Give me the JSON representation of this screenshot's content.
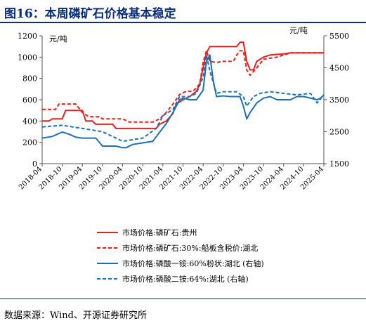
{
  "figure": {
    "title": "图16：本周磷矿石价格基本稳定",
    "source": "数据来源：Wind、开源证券研究所"
  },
  "colors": {
    "title": "#0b2f7a",
    "red": "#e8201a",
    "blue": "#1e6fb8"
  },
  "chart_data": {
    "type": "line",
    "title": "",
    "left_unit": "元/吨",
    "right_unit": "元/吨",
    "xlabel": "",
    "ylabel": "",
    "y_left": {
      "ticks": [
        0,
        200,
        400,
        600,
        800,
        1000,
        1200
      ],
      "ylim": [
        0,
        1200
      ]
    },
    "y_right": {
      "ticks": [
        1500,
        2500,
        3500,
        4500,
        5500
      ],
      "ylim": [
        1500,
        5500
      ]
    },
    "x_ticks": [
      "2018-04",
      "2018-10",
      "2019-04",
      "2019-10",
      "2020-04",
      "2020-10",
      "2021-04",
      "2021-10",
      "2022-04",
      "2022-10",
      "2023-04",
      "2023-10",
      "2024-04",
      "2024-10",
      "2025-04"
    ],
    "xlim": [
      "2018-04",
      "2025-04"
    ],
    "grid": false,
    "legend_position": "bottom",
    "series": [
      {
        "name": "市场价格:磷矿石:贵州",
        "axis": "left",
        "color": "#e8201a",
        "style": "solid",
        "points": [
          [
            "2018-04",
            400
          ],
          [
            "2018-06",
            400
          ],
          [
            "2018-07",
            420
          ],
          [
            "2018-10",
            420
          ],
          [
            "2018-11",
            500
          ],
          [
            "2019-04",
            500
          ],
          [
            "2019-05",
            400
          ],
          [
            "2019-07",
            400
          ],
          [
            "2019-08",
            370
          ],
          [
            "2020-01",
            370
          ],
          [
            "2020-02",
            330
          ],
          [
            "2021-02",
            330
          ],
          [
            "2021-03",
            370
          ],
          [
            "2021-05",
            400
          ],
          [
            "2021-07",
            470
          ],
          [
            "2021-08",
            560
          ],
          [
            "2021-10",
            600
          ],
          [
            "2021-12",
            630
          ],
          [
            "2022-02",
            680
          ],
          [
            "2022-03",
            750
          ],
          [
            "2022-04",
            900
          ],
          [
            "2022-05",
            1040
          ],
          [
            "2022-06",
            1100
          ],
          [
            "2023-02",
            1100
          ],
          [
            "2023-03",
            1140
          ],
          [
            "2023-04",
            1140
          ],
          [
            "2023-05",
            960
          ],
          [
            "2023-06",
            880
          ],
          [
            "2023-07",
            880
          ],
          [
            "2023-08",
            960
          ],
          [
            "2023-10",
            1000
          ],
          [
            "2023-12",
            1020
          ],
          [
            "2024-04",
            1030
          ],
          [
            "2024-06",
            1040
          ],
          [
            "2025-04",
            1040
          ]
        ]
      },
      {
        "name": "市场价格:磷矿石:30%:船板含税价:湖北",
        "axis": "left",
        "color": "#e8201a",
        "style": "dashed",
        "points": [
          [
            "2018-04",
            510
          ],
          [
            "2018-08",
            510
          ],
          [
            "2018-09",
            560
          ],
          [
            "2018-10",
            560
          ],
          [
            "2019-02",
            560
          ],
          [
            "2019-03",
            520
          ],
          [
            "2019-04",
            480
          ],
          [
            "2019-06",
            440
          ],
          [
            "2019-09",
            440
          ],
          [
            "2019-10",
            420
          ],
          [
            "2020-04",
            420
          ],
          [
            "2020-06",
            390
          ],
          [
            "2020-10",
            390
          ],
          [
            "2021-01",
            390
          ],
          [
            "2021-03",
            420
          ],
          [
            "2021-05",
            480
          ],
          [
            "2021-07",
            560
          ],
          [
            "2021-09",
            650
          ],
          [
            "2021-11",
            680
          ],
          [
            "2022-01",
            680
          ],
          [
            "2022-03",
            750
          ],
          [
            "2022-04",
            950
          ],
          [
            "2022-05",
            1060
          ],
          [
            "2022-06",
            960
          ],
          [
            "2022-08",
            950
          ],
          [
            "2022-10",
            960
          ],
          [
            "2023-01",
            960
          ],
          [
            "2023-02",
            1020
          ],
          [
            "2023-03",
            1060
          ],
          [
            "2023-04",
            1060
          ],
          [
            "2023-05",
            880
          ],
          [
            "2023-06",
            830
          ],
          [
            "2023-08",
            900
          ],
          [
            "2023-10",
            980
          ],
          [
            "2024-02",
            1000
          ],
          [
            "2024-06",
            1040
          ],
          [
            "2025-04",
            1040
          ]
        ]
      },
      {
        "name": "市场价格:磷酸一铵:60%粉状:湖北 (右轴)",
        "axis": "right",
        "color": "#1e6fb8",
        "style": "solid",
        "points": [
          [
            "2018-04",
            2300
          ],
          [
            "2018-07",
            2350
          ],
          [
            "2018-10",
            2490
          ],
          [
            "2018-12",
            2420
          ],
          [
            "2019-02",
            2330
          ],
          [
            "2019-04",
            2300
          ],
          [
            "2019-06",
            2300
          ],
          [
            "2019-08",
            2300
          ],
          [
            "2019-10",
            2050
          ],
          [
            "2020-02",
            2050
          ],
          [
            "2020-04",
            2000
          ],
          [
            "2020-05",
            2000
          ],
          [
            "2020-07",
            2100
          ],
          [
            "2020-10",
            2150
          ],
          [
            "2021-01",
            2200
          ],
          [
            "2021-03",
            2480
          ],
          [
            "2021-05",
            2750
          ],
          [
            "2021-07",
            3100
          ],
          [
            "2021-09",
            3500
          ],
          [
            "2021-10",
            3550
          ],
          [
            "2021-12",
            3500
          ],
          [
            "2022-02",
            3500
          ],
          [
            "2022-04",
            3800
          ],
          [
            "2022-05",
            4700
          ],
          [
            "2022-06",
            4900
          ],
          [
            "2022-07",
            4100
          ],
          [
            "2022-08",
            3600
          ],
          [
            "2022-10",
            3620
          ],
          [
            "2022-12",
            3600
          ],
          [
            "2023-03",
            3600
          ],
          [
            "2023-04",
            3300
          ],
          [
            "2023-05",
            2900
          ],
          [
            "2023-06",
            3100
          ],
          [
            "2023-08",
            3400
          ],
          [
            "2023-10",
            3550
          ],
          [
            "2023-12",
            3600
          ],
          [
            "2024-02",
            3500
          ],
          [
            "2024-06",
            3500
          ],
          [
            "2024-08",
            3600
          ],
          [
            "2024-10",
            3600
          ],
          [
            "2025-02",
            3500
          ],
          [
            "2025-03",
            3550
          ],
          [
            "2025-04",
            3650
          ]
        ]
      },
      {
        "name": "市场价格:磷酸二铵:64%:湖北 (右轴)",
        "axis": "right",
        "color": "#1e6fb8",
        "style": "dashed",
        "points": [
          [
            "2018-04",
            2650
          ],
          [
            "2018-10",
            2700
          ],
          [
            "2019-04",
            2600
          ],
          [
            "2019-10",
            2500
          ],
          [
            "2020-04",
            2200
          ],
          [
            "2020-10",
            2300
          ],
          [
            "2021-02",
            2600
          ],
          [
            "2021-04",
            3000
          ],
          [
            "2021-07",
            3200
          ],
          [
            "2021-09",
            3600
          ],
          [
            "2021-12",
            3600
          ],
          [
            "2022-02",
            3700
          ],
          [
            "2022-04",
            4200
          ],
          [
            "2022-05",
            4900
          ],
          [
            "2022-06",
            4400
          ],
          [
            "2022-08",
            3700
          ],
          [
            "2022-10",
            3750
          ],
          [
            "2023-02",
            3750
          ],
          [
            "2023-04",
            3600
          ],
          [
            "2023-05",
            3300
          ],
          [
            "2023-07",
            3600
          ],
          [
            "2023-09",
            3700
          ],
          [
            "2023-12",
            3750
          ],
          [
            "2024-04",
            3700
          ],
          [
            "2024-08",
            3650
          ],
          [
            "2024-12",
            3700
          ],
          [
            "2025-02",
            3400
          ],
          [
            "2025-04",
            3650
          ]
        ]
      }
    ]
  }
}
